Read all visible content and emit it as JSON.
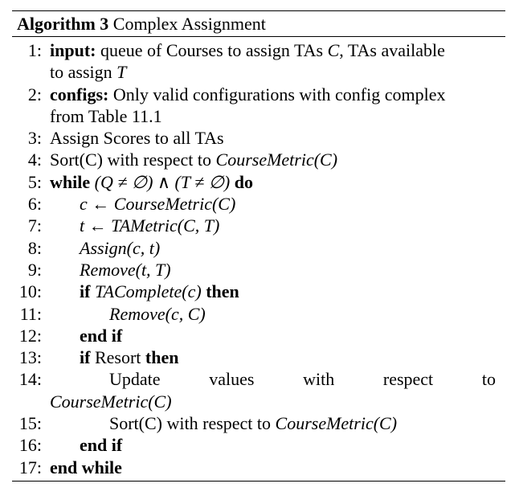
{
  "caption": {
    "label": "Algorithm 3",
    "title": "Complex Assignment"
  },
  "lines": [
    {
      "num": "1:",
      "kw": "input:",
      "text1": "queue of Courses to assign TAs",
      "math1": "C",
      "text2": ", TAs available",
      "text3": "to assign",
      "math2": "T"
    },
    {
      "num": "2:",
      "kw": "configs:",
      "text1": "Only valid configurations with config complex",
      "text2": "from Table 11.1"
    },
    {
      "num": "3:",
      "text": "Assign Scores to all TAs"
    },
    {
      "num": "4:",
      "text": "Sort(C) with respect to",
      "math": "CourseMetric(C)"
    },
    {
      "num": "5:",
      "kw1": "while",
      "math": "(Q ≠ ∅) ∧ (T ≠ ∅)",
      "kw2": "do"
    },
    {
      "num": "6:",
      "math": "c ← CourseMetric(C)"
    },
    {
      "num": "7:",
      "math": "t ← TAMetric(C, T)"
    },
    {
      "num": "8:",
      "math": "Assign(c, t)"
    },
    {
      "num": "9:",
      "math": "Remove(t, T)"
    },
    {
      "num": "10:",
      "kw1": "if",
      "math": "TAComplete(c)",
      "kw2": "then"
    },
    {
      "num": "11:",
      "math": "Remove(c, C)"
    },
    {
      "num": "12:",
      "kw": "end if"
    },
    {
      "num": "13:",
      "kw1": "if",
      "text": "Resort",
      "kw2": "then"
    },
    {
      "num": "14:",
      "words": [
        "Update",
        "values",
        "with",
        "respect",
        "to"
      ],
      "math": "CourseMetric(C)"
    },
    {
      "num": "15:",
      "text": "Sort(C) with respect to",
      "math": "CourseMetric(C)"
    },
    {
      "num": "16:",
      "kw": "end if"
    },
    {
      "num": "17:",
      "kw": "end while"
    }
  ]
}
